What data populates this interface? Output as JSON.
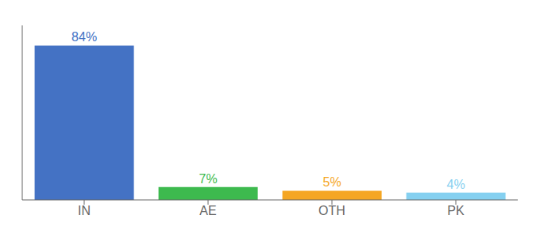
{
  "chart_data": {
    "type": "bar",
    "categories": [
      "IN",
      "AE",
      "OTH",
      "PK"
    ],
    "values": [
      84,
      7,
      5,
      4
    ],
    "value_labels": [
      "84%",
      "7%",
      "5%",
      "4%"
    ],
    "data_labels": true,
    "colors": [
      "#4472c4",
      "#3dba4e",
      "#f5a623",
      "#85d0f0"
    ],
    "ylim": [
      0,
      95
    ],
    "tick_labels": "x",
    "grid": false
  }
}
